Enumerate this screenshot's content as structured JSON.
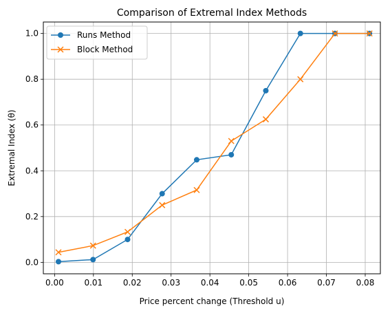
{
  "chart_data": {
    "type": "line",
    "title": "Comparison of Extremal Index Methods",
    "xlabel": "Price percent change (Threshold u)",
    "ylabel": "Extremal Index (θ)",
    "xlim": [
      -0.0029,
      0.0839
    ],
    "ylim": [
      -0.05,
      1.05
    ],
    "xticks": [
      0.0,
      0.01,
      0.02,
      0.03,
      0.04,
      0.05,
      0.06,
      0.07,
      0.08
    ],
    "xtick_labels": [
      "0.00",
      "0.01",
      "0.02",
      "0.03",
      "0.04",
      "0.05",
      "0.06",
      "0.07",
      "0.08"
    ],
    "yticks": [
      0.0,
      0.2,
      0.4,
      0.6,
      0.8,
      1.0
    ],
    "ytick_labels": [
      "0.0",
      "0.2",
      "0.4",
      "0.6",
      "0.8",
      "1.0"
    ],
    "grid": true,
    "legend_position": "top-left",
    "x": [
      0.001,
      0.0099,
      0.0188,
      0.0277,
      0.0366,
      0.0455,
      0.0544,
      0.0633,
      0.0722,
      0.0811
    ],
    "series": [
      {
        "name": "Runs Method",
        "color": "#1f77b4",
        "marker": "circle",
        "values": [
          0.003,
          0.012,
          0.1,
          0.3,
          0.448,
          0.47,
          0.75,
          1.0,
          1.0,
          1.0
        ]
      },
      {
        "name": "Block Method",
        "color": "#ff7f0e",
        "marker": "x",
        "values": [
          0.044,
          0.073,
          0.133,
          0.25,
          0.316,
          0.53,
          0.625,
          0.8,
          1.0,
          1.0
        ]
      }
    ]
  }
}
